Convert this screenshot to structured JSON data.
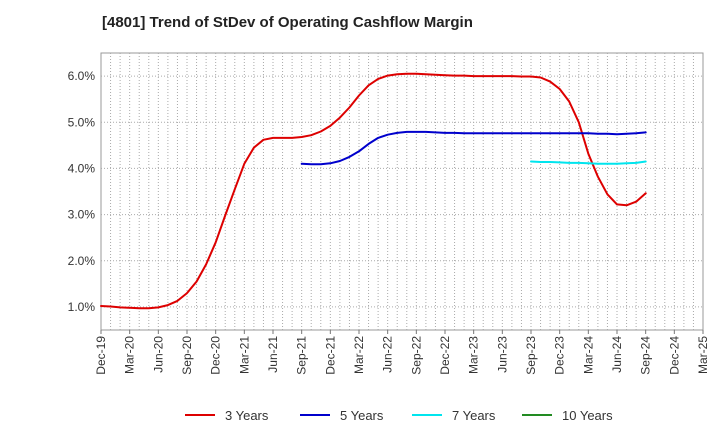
{
  "title": "[4801]  Trend of StDev of Operating Cashflow Margin",
  "chart_data": {
    "type": "line",
    "title": "[4801]  Trend of StDev of Operating Cashflow Margin",
    "xlabel": "",
    "ylabel": "",
    "grid": true,
    "legend_position": "bottom",
    "x_ticks": [
      "Dec-19",
      "Mar-20",
      "Jun-20",
      "Sep-20",
      "Dec-20",
      "Mar-21",
      "Jun-21",
      "Sep-21",
      "Dec-21",
      "Mar-22",
      "Jun-22",
      "Sep-22",
      "Dec-22",
      "Mar-23",
      "Jun-23",
      "Sep-23",
      "Dec-23",
      "Mar-24",
      "Jun-24",
      "Sep-24",
      "Dec-24",
      "Mar-25"
    ],
    "y_ticks": [
      "1.0%",
      "2.0%",
      "3.0%",
      "4.0%",
      "5.0%",
      "6.0%"
    ],
    "ylim": [
      0.5,
      6.5
    ],
    "series": [
      {
        "name": "3 Years",
        "color": "#dd0000",
        "x": [
          "Dec-19",
          "Jan-20",
          "Feb-20",
          "Mar-20",
          "Apr-20",
          "May-20",
          "Jun-20",
          "Jul-20",
          "Aug-20",
          "Sep-20",
          "Oct-20",
          "Nov-20",
          "Dec-20",
          "Jan-21",
          "Feb-21",
          "Mar-21",
          "Apr-21",
          "May-21",
          "Jun-21",
          "Jul-21",
          "Aug-21",
          "Sep-21",
          "Oct-21",
          "Nov-21",
          "Dec-21",
          "Jan-22",
          "Feb-22",
          "Mar-22",
          "Apr-22",
          "May-22",
          "Jun-22",
          "Jul-22",
          "Aug-22",
          "Sep-22",
          "Oct-22",
          "Nov-22",
          "Dec-22",
          "Jan-23",
          "Feb-23",
          "Mar-23",
          "Apr-23",
          "May-23",
          "Jun-23",
          "Jul-23",
          "Aug-23",
          "Sep-23",
          "Oct-23",
          "Nov-23",
          "Dec-23",
          "Jan-24",
          "Feb-24",
          "Mar-24",
          "Apr-24",
          "May-24",
          "Jun-24",
          "Jul-24",
          "Aug-24",
          "Sep-24"
        ],
        "values": [
          1.02,
          1.01,
          0.99,
          0.98,
          0.97,
          0.97,
          0.99,
          1.04,
          1.13,
          1.3,
          1.55,
          1.92,
          2.4,
          2.98,
          3.55,
          4.1,
          4.45,
          4.62,
          4.66,
          4.66,
          4.66,
          4.68,
          4.72,
          4.8,
          4.92,
          5.1,
          5.32,
          5.58,
          5.8,
          5.94,
          6.01,
          6.04,
          6.05,
          6.05,
          6.04,
          6.03,
          6.02,
          6.01,
          6.01,
          6.0,
          6.0,
          6.0,
          6.0,
          6.0,
          5.99,
          5.99,
          5.97,
          5.88,
          5.72,
          5.45,
          5.0,
          4.32,
          3.82,
          3.44,
          3.22,
          3.2,
          3.28,
          3.46
        ]
      },
      {
        "name": "5 Years",
        "color": "#0000cc",
        "x": [
          "Sep-21",
          "Oct-21",
          "Nov-21",
          "Dec-21",
          "Jan-22",
          "Feb-22",
          "Mar-22",
          "Apr-22",
          "May-22",
          "Jun-22",
          "Jul-22",
          "Aug-22",
          "Sep-22",
          "Oct-22",
          "Nov-22",
          "Dec-22",
          "Jan-23",
          "Feb-23",
          "Mar-23",
          "Apr-23",
          "May-23",
          "Jun-23",
          "Jul-23",
          "Aug-23",
          "Sep-23",
          "Oct-23",
          "Nov-23",
          "Dec-23",
          "Jan-24",
          "Feb-24",
          "Mar-24",
          "Apr-24",
          "May-24",
          "Jun-24",
          "Jul-24",
          "Aug-24",
          "Sep-24"
        ],
        "values": [
          4.1,
          4.09,
          4.09,
          4.11,
          4.16,
          4.25,
          4.37,
          4.53,
          4.66,
          4.73,
          4.77,
          4.79,
          4.79,
          4.79,
          4.78,
          4.77,
          4.77,
          4.76,
          4.76,
          4.76,
          4.76,
          4.76,
          4.76,
          4.76,
          4.76,
          4.76,
          4.76,
          4.76,
          4.76,
          4.76,
          4.76,
          4.75,
          4.75,
          4.74,
          4.75,
          4.76,
          4.78
        ]
      },
      {
        "name": "7 Years",
        "color": "#00e5ee",
        "x": [
          "Sep-23",
          "Oct-23",
          "Nov-23",
          "Dec-23",
          "Jan-24",
          "Feb-24",
          "Mar-24",
          "Apr-24",
          "May-24",
          "Jun-24",
          "Jul-24",
          "Aug-24",
          "Sep-24"
        ],
        "values": [
          4.15,
          4.14,
          4.14,
          4.13,
          4.12,
          4.12,
          4.11,
          4.1,
          4.1,
          4.1,
          4.11,
          4.12,
          4.15
        ]
      },
      {
        "name": "10 Years",
        "color": "#228b22",
        "x": [],
        "values": []
      }
    ]
  }
}
